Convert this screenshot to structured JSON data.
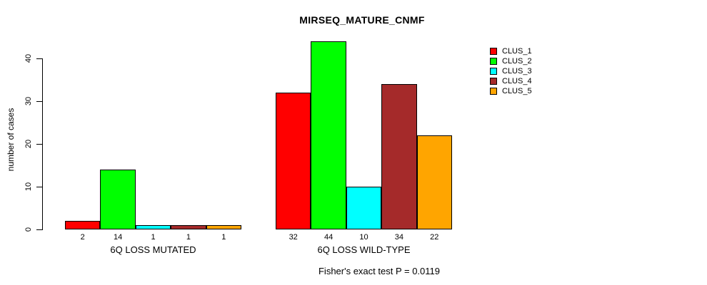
{
  "chart_data": {
    "type": "bar",
    "title": "MIRSEQ_MATURE_CNMF",
    "ylabel": "number of cases",
    "xlabel": "",
    "ylim": [
      0,
      44
    ],
    "yticks": [
      0,
      10,
      20,
      30,
      40
    ],
    "grid": false,
    "legend_position": "top-right",
    "legend": [
      {
        "label": "CLUS_1",
        "color": "#FF0000"
      },
      {
        "label": "CLUS_2",
        "color": "#00FF00"
      },
      {
        "label": "CLUS_3",
        "color": "#00FFFF"
      },
      {
        "label": "CLUS_4",
        "color": "#A52A2A"
      },
      {
        "label": "CLUS_5",
        "color": "#FFA500"
      }
    ],
    "groups": [
      {
        "label": "6Q LOSS MUTATED",
        "values": [
          2,
          14,
          1,
          1,
          1
        ]
      },
      {
        "label": "6Q LOSS WILD-TYPE",
        "values": [
          32,
          44,
          10,
          34,
          22
        ]
      }
    ],
    "bar_value_labels_shown": true,
    "annotation": "Fisher's exact test P = 0.0119",
    "axis_color": "#000000",
    "bar_border_color": "#000000",
    "background_color": "#FFFFFF"
  }
}
